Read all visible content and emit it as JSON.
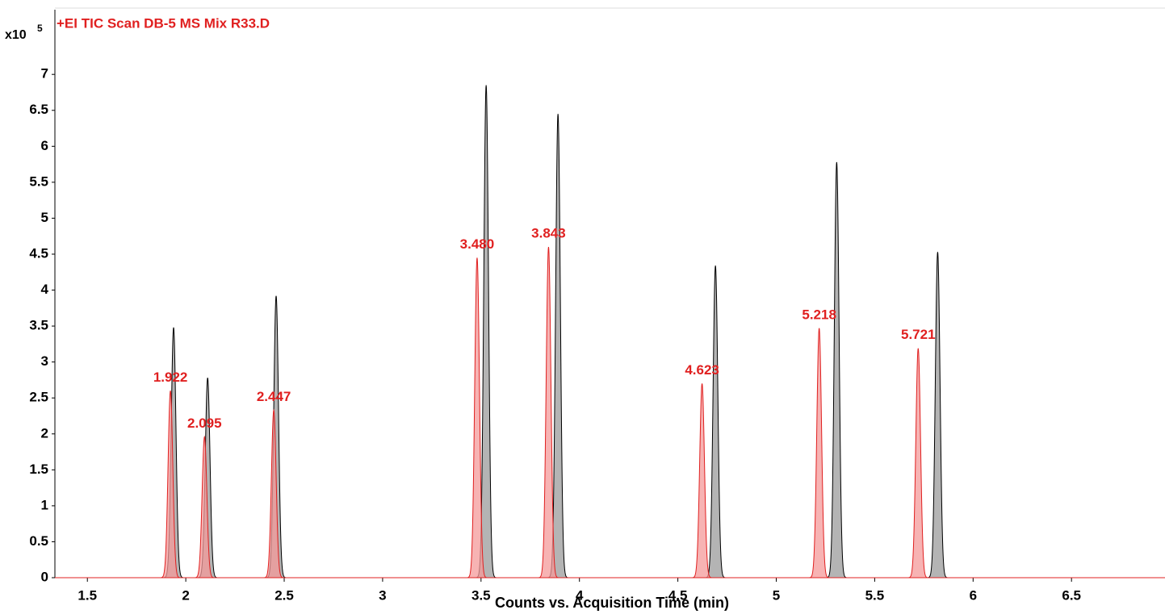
{
  "chart_data": {
    "type": "chromatogram",
    "title": "+EI TIC Scan DB-5 MS Mix R33.D",
    "y_multiplier": {
      "base": "x10",
      "exponent": "5"
    },
    "x_label": "Counts vs. Acquisition Time (min)",
    "xlim": [
      1.335,
      6.975
    ],
    "ylim": [
      0,
      7.9
    ],
    "xticks": [
      1.5,
      2,
      2.5,
      3,
      3.5,
      4,
      4.5,
      5,
      5.5,
      6,
      6.5
    ],
    "yticks": [
      0,
      0.5,
      1,
      1.5,
      2,
      2.5,
      3,
      3.5,
      4,
      4.5,
      5,
      5.5,
      6,
      6.5,
      7
    ],
    "series": [
      {
        "color": "#000000",
        "fill": "#b4b4b4",
        "x": [
          1.938,
          2.111,
          2.459,
          3.526,
          3.891,
          4.691,
          5.307,
          5.82
        ],
        "values": [
          3.48,
          2.78,
          3.92,
          6.85,
          6.45,
          4.34,
          5.78,
          4.53
        ]
      },
      {
        "color": "#e02020",
        "fill": "#f49a9a",
        "x": [
          1.922,
          2.095,
          2.447,
          3.48,
          3.843,
          4.623,
          5.218,
          5.721
        ],
        "x_labels": [
          "1.922",
          "2.095",
          "2.447",
          "3.480",
          "3.843",
          "4.623",
          "5.218",
          "5.721"
        ],
        "values": [
          2.6,
          1.96,
          2.33,
          4.45,
          4.6,
          2.7,
          3.47,
          3.19
        ]
      }
    ]
  }
}
